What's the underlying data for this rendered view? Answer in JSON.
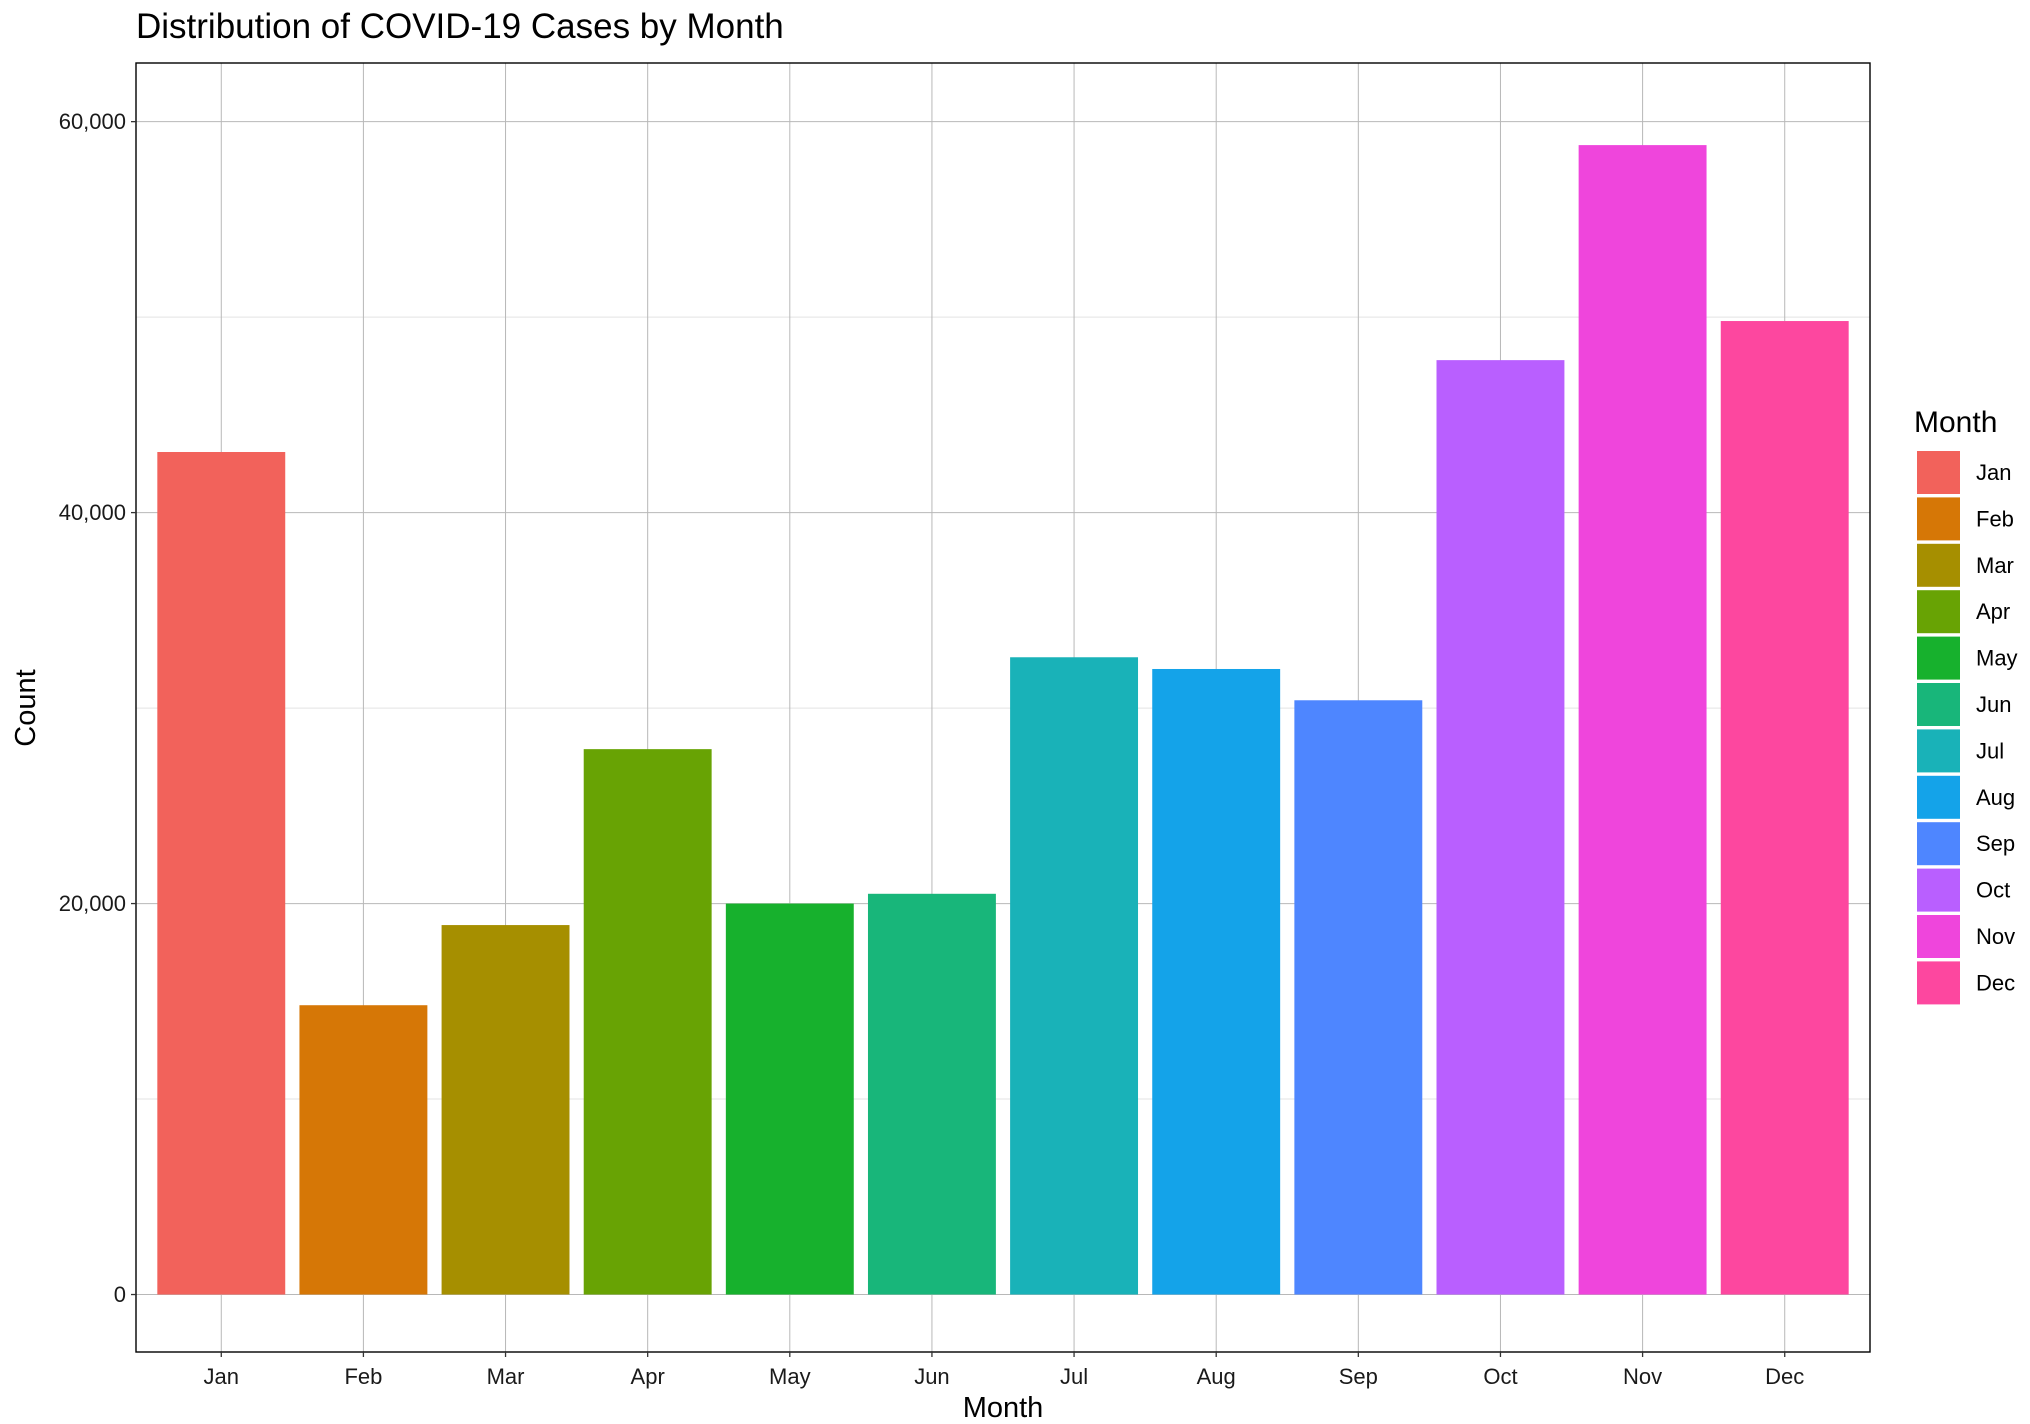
{
  "chart_data": {
    "type": "bar",
    "title": "Distribution of COVID-19 Cases by Month",
    "xlabel": "Month",
    "ylabel": "Count",
    "categories": [
      "Jan",
      "Feb",
      "Mar",
      "Apr",
      "May",
      "Jun",
      "Jul",
      "Aug",
      "Sep",
      "Oct",
      "Nov",
      "Dec"
    ],
    "values": [
      43100,
      14800,
      18900,
      27900,
      20000,
      20500,
      32600,
      32000,
      30400,
      47800,
      58800,
      49800
    ],
    "ylim": [
      -2940,
      63000
    ],
    "yticks": [
      0,
      20000,
      40000,
      60000
    ],
    "ytick_labels": [
      "0",
      "20,000",
      "40,000",
      "60,000"
    ],
    "minor_yticks": [
      10000,
      30000,
      50000
    ],
    "grid": true,
    "colors": [
      "#F2625B",
      "#D67706",
      "#A68F00",
      "#68A304",
      "#17B12D",
      "#18B67A",
      "#19B2B8",
      "#14A3E9",
      "#4E86FF",
      "#B95FFF",
      "#EF45DC",
      "#FD479F"
    ],
    "legend": {
      "title": "Month",
      "position": "right",
      "entries": [
        "Jan",
        "Feb",
        "Mar",
        "Apr",
        "May",
        "Jun",
        "Jul",
        "Aug",
        "Sep",
        "Oct",
        "Nov",
        "Dec"
      ]
    }
  }
}
